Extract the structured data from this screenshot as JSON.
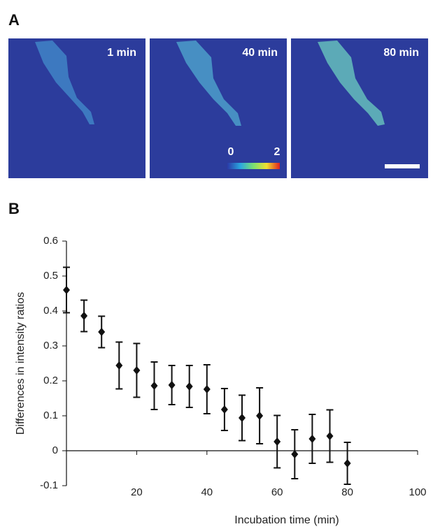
{
  "panel_a": {
    "label": "A",
    "images": [
      "1 min",
      "40 min",
      "80 min"
    ],
    "colorbar": {
      "min": 0,
      "max": 2
    }
  },
  "chart_data": {
    "type": "scatter",
    "label": "B",
    "x_label": "Incubation time (min)",
    "y_label": "Differences in intensity ratios",
    "xlim": [
      0,
      100
    ],
    "xticks": [
      20,
      40,
      60,
      80,
      100
    ],
    "ylim": [
      -0.1,
      0.6
    ],
    "yticks": [
      0.6,
      0.5,
      0.4,
      0.3,
      0.2,
      0.1,
      0,
      -0.1
    ],
    "series": [
      {
        "color": "#111111",
        "x": [
          0,
          5,
          10,
          15,
          20,
          25,
          30,
          35,
          40,
          45,
          50,
          55,
          60,
          65,
          70,
          75,
          80
        ],
        "values": [
          0.46,
          0.386,
          0.34,
          0.244,
          0.23,
          0.186,
          0.188,
          0.184,
          0.176,
          0.118,
          0.094,
          0.1,
          0.026,
          -0.01,
          0.034,
          0.042,
          -0.036
        ],
        "errors": [
          0.065,
          0.045,
          0.045,
          0.067,
          0.077,
          0.068,
          0.056,
          0.06,
          0.07,
          0.06,
          0.065,
          0.08,
          0.075,
          0.07,
          0.07,
          0.075,
          0.06
        ]
      }
    ]
  }
}
